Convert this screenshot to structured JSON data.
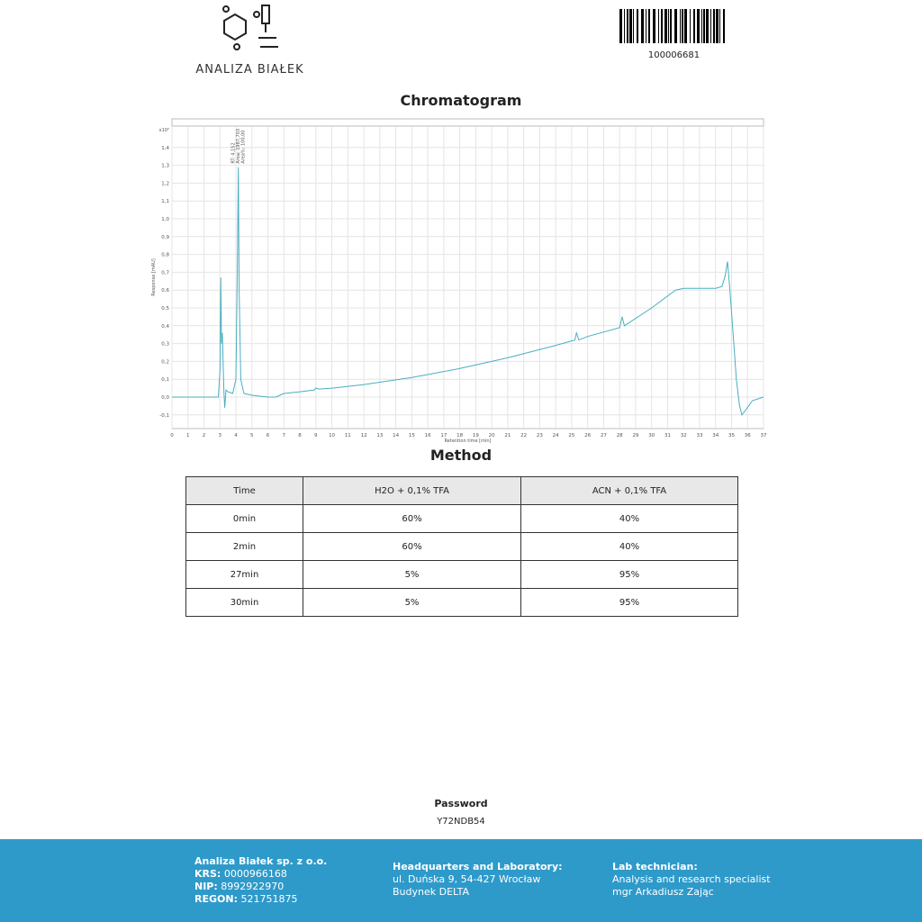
{
  "logo": {
    "text": "ANALIZA BIAŁEK"
  },
  "barcode": {
    "number": "100006681"
  },
  "chromatogram": {
    "title": "Chromatogram"
  },
  "chart_data": {
    "type": "line",
    "xlabel": "Retention time [min]",
    "ylabel": "Response [mAU]",
    "y_multiplier": "x10²",
    "xlim": [
      0,
      37
    ],
    "ylim": [
      -0.15,
      1.5
    ],
    "x_ticks": [
      0,
      1,
      2,
      3,
      4,
      5,
      6,
      7,
      8,
      9,
      10,
      11,
      12,
      13,
      14,
      15,
      16,
      17,
      18,
      19,
      20,
      21,
      22,
      23,
      24,
      25,
      26,
      27,
      28,
      29,
      30,
      31,
      32,
      33,
      34,
      35,
      36,
      37
    ],
    "y_ticks": [
      "-0,1",
      "0,0",
      "0,1",
      "0,2",
      "0,3",
      "0,4",
      "0,5",
      "0,6",
      "0,7",
      "0,8",
      "0,9",
      "1,0",
      "1,1",
      "1,2",
      "1,3",
      "1,4"
    ],
    "grid": true,
    "annotation": {
      "x": 4.152,
      "lines": [
        "RT: 4,152",
        "Area: 1987,703",
        "Area%: 100,00"
      ]
    },
    "series": [
      {
        "color": "#4aaec0",
        "x": [
          0,
          2.9,
          3.0,
          3.05,
          3.1,
          3.15,
          3.2,
          3.25,
          3.3,
          3.38,
          3.5,
          3.8,
          4.0,
          4.1,
          4.15,
          4.2,
          4.3,
          4.5,
          5,
          6,
          6.5,
          7,
          8,
          8.9,
          9,
          9.2,
          10,
          12,
          15,
          18,
          21,
          24,
          25.2,
          25.3,
          25.45,
          26,
          28,
          28.15,
          28.3,
          30,
          31.5,
          32,
          34,
          34.4,
          34.6,
          34.75,
          34.9,
          35.1,
          35.3,
          35.5,
          35.65,
          35.9,
          36.3,
          37
        ],
        "y": [
          0,
          0,
          0.15,
          0.67,
          0.3,
          0.36,
          0.2,
          0.03,
          -0.06,
          0.04,
          0.03,
          0.02,
          0.1,
          0.8,
          1.29,
          0.6,
          0.1,
          0.02,
          0.01,
          0.0,
          0.0,
          0.02,
          0.03,
          0.04,
          0.05,
          0.045,
          0.05,
          0.07,
          0.11,
          0.16,
          0.22,
          0.29,
          0.32,
          0.36,
          0.32,
          0.34,
          0.39,
          0.45,
          0.4,
          0.5,
          0.6,
          0.61,
          0.61,
          0.62,
          0.68,
          0.76,
          0.6,
          0.35,
          0.1,
          -0.05,
          -0.1,
          -0.07,
          -0.02,
          0.0
        ]
      }
    ]
  },
  "method": {
    "title": "Method",
    "headers": [
      "Time",
      "H2O + 0,1% TFA",
      "ACN + 0,1% TFA"
    ],
    "rows": [
      [
        "0min",
        "60%",
        "40%"
      ],
      [
        "2min",
        "60%",
        "40%"
      ],
      [
        "27min",
        "5%",
        "95%"
      ],
      [
        "30min",
        "5%",
        "95%"
      ]
    ]
  },
  "password": {
    "label": "Password",
    "value": "Y72NDB54"
  },
  "footer": {
    "company": "Analiza Białek sp. z o.o.",
    "krs_label": "KRS:",
    "krs": "0000966168",
    "nip_label": "NIP:",
    "nip": "8992922970",
    "regon_label": "REGON:",
    "regon": "521751875",
    "hq_title": "Headquarters and Laboratory:",
    "hq_line1": "ul. Duńska 9, 54-427 Wrocław",
    "hq_line2": "Budynek DELTA",
    "tech_title": "Lab technician:",
    "tech_line1": "Analysis and research specialist",
    "tech_line2": "mgr Arkadiusz Zając"
  }
}
